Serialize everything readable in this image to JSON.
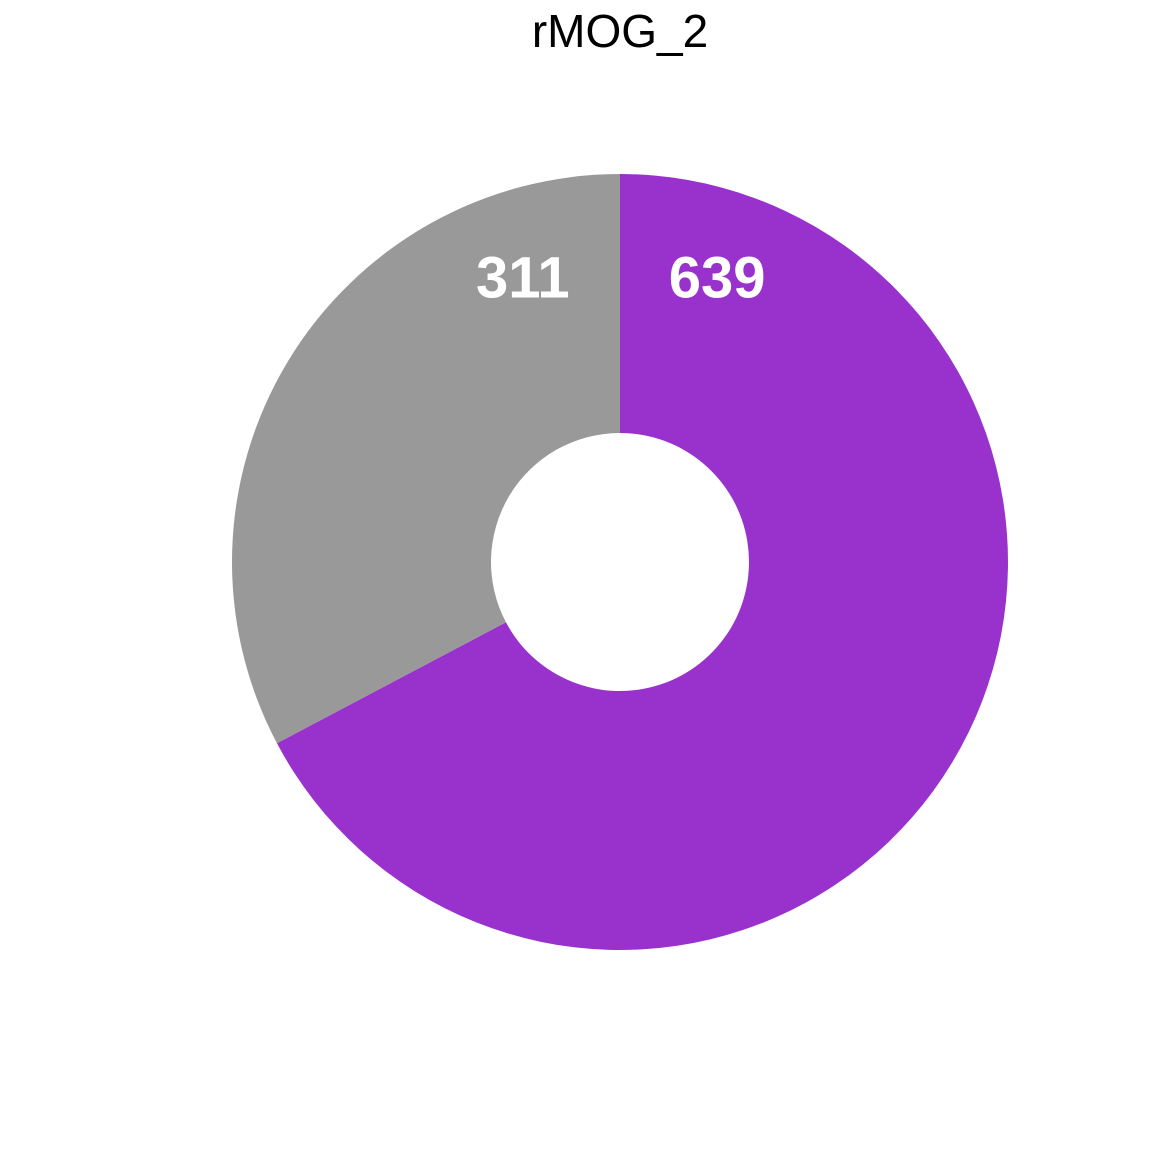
{
  "chart_data": {
    "type": "pie",
    "title": "rMOG_2",
    "slices": [
      {
        "label": "639",
        "value": 639,
        "color": "#9932CC"
      },
      {
        "label": "311",
        "value": 311,
        "color": "#999999"
      }
    ]
  }
}
